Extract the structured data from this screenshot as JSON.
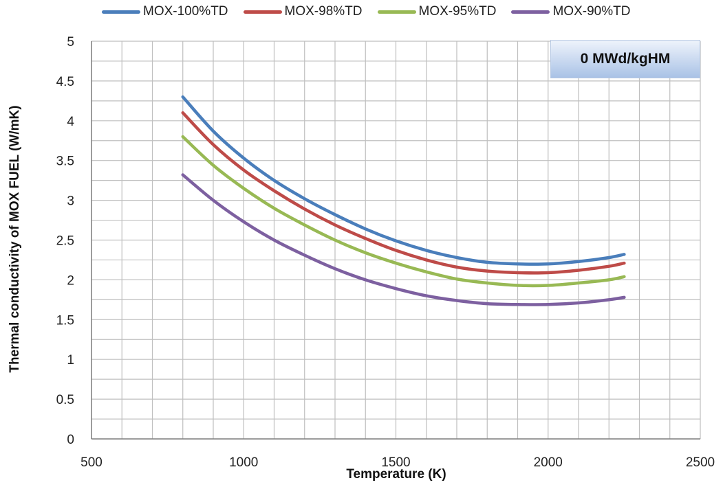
{
  "chart_data": {
    "type": "line",
    "xlabel": "Temperature (K)",
    "ylabel": "Thermal conductivity of MOX FUEL (W/mK)",
    "annotation": "0 MWd/kgHM",
    "xlim": [
      500,
      2500
    ],
    "ylim": [
      0,
      5
    ],
    "xticks": [
      "500",
      "1000",
      "1500",
      "2000",
      "2500"
    ],
    "yticks": [
      "0",
      "0.5",
      "1",
      "1.5",
      "2",
      "2.5",
      "3",
      "3.5",
      "4",
      "4.5",
      "5"
    ],
    "grid": true,
    "legend_position": "top",
    "x": [
      800,
      900,
      1000,
      1100,
      1200,
      1300,
      1400,
      1500,
      1600,
      1700,
      1800,
      1900,
      2000,
      2100,
      2200,
      2250
    ],
    "series": [
      {
        "name": "MOX-100%TD",
        "color": "#4a7ebb",
        "values": [
          4.3,
          3.87,
          3.53,
          3.25,
          3.02,
          2.82,
          2.64,
          2.49,
          2.37,
          2.28,
          2.22,
          2.2,
          2.2,
          2.23,
          2.28,
          2.32
        ]
      },
      {
        "name": "MOX-98%TD",
        "color": "#be4b48",
        "values": [
          4.1,
          3.7,
          3.38,
          3.12,
          2.89,
          2.69,
          2.52,
          2.37,
          2.25,
          2.16,
          2.11,
          2.09,
          2.09,
          2.12,
          2.17,
          2.21
        ]
      },
      {
        "name": "MOX-95%TD",
        "color": "#98b954",
        "values": [
          3.8,
          3.44,
          3.15,
          2.9,
          2.69,
          2.5,
          2.34,
          2.21,
          2.1,
          2.01,
          1.96,
          1.93,
          1.93,
          1.96,
          2.0,
          2.04
        ]
      },
      {
        "name": "MOX-90%TD",
        "color": "#7d60a0",
        "values": [
          3.32,
          3.0,
          2.73,
          2.5,
          2.31,
          2.14,
          2.0,
          1.89,
          1.8,
          1.74,
          1.7,
          1.69,
          1.69,
          1.71,
          1.75,
          1.78
        ]
      }
    ]
  }
}
